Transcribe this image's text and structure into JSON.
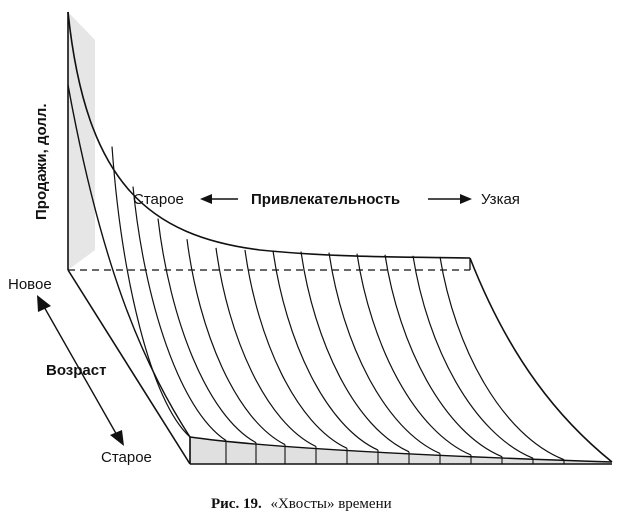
{
  "labels": {
    "y_axis": "Продажи, долл.",
    "new": "Новое",
    "age": "Возраст",
    "old_bottom": "Старое",
    "old_top": "Старое",
    "appeal": "Привлекательность",
    "narrow": "Узкая"
  },
  "caption": {
    "prefix": "Рис. 19.",
    "text": "«Хвосты» времени"
  },
  "colors": {
    "ink": "#111111",
    "shade": "#e4e4e4",
    "background": "#ffffff"
  }
}
